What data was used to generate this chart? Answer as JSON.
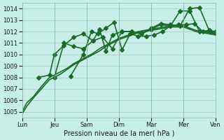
{
  "xlabel": "Pression niveau de la mer( hPa )",
  "ylabel": "",
  "background_color": "#c8eee8",
  "grid_color": "#a0c8c0",
  "line_color": "#1a6b2a",
  "ylim": [
    1004.5,
    1014.5
  ],
  "x_ticks": [
    0,
    1,
    2,
    3,
    4,
    5,
    6
  ],
  "x_tick_labels": [
    "Lun",
    "Jeu",
    "Sam",
    "Dim",
    "Mar",
    "Mer",
    "Ven"
  ],
  "series": [
    {
      "x": [
        0.0,
        0.15,
        0.35,
        0.6,
        0.85,
        1.0,
        1.2,
        1.4,
        1.6,
        1.8,
        2.0,
        2.2,
        2.4,
        2.6,
        2.8,
        3.0,
        3.2,
        3.4,
        3.6,
        3.8,
        4.0,
        4.2,
        4.4,
        4.6,
        4.8,
        5.0,
        5.2,
        5.4,
        5.6,
        5.8,
        6.0
      ],
      "y": [
        1005.0,
        1005.8,
        1006.3,
        1007.2,
        1008.0,
        1008.2,
        1008.5,
        1008.8,
        1009.2,
        1009.5,
        1009.8,
        1010.1,
        1010.5,
        1010.8,
        1011.1,
        1011.4,
        1011.6,
        1011.8,
        1012.0,
        1012.1,
        1012.2,
        1012.3,
        1012.4,
        1012.5,
        1012.5,
        1012.5,
        1012.3,
        1012.1,
        1012.0,
        1011.9,
        1011.8
      ],
      "marker": false,
      "linewidth": 1.2,
      "linestyle": "-"
    },
    {
      "x": [
        0.0,
        0.15,
        0.35,
        0.6,
        0.85,
        1.0,
        1.2,
        1.4,
        1.6,
        1.8,
        2.0,
        2.2,
        2.4,
        2.6,
        2.8,
        3.0,
        3.2,
        3.4,
        3.6,
        3.8,
        4.0,
        4.2,
        4.4,
        4.6,
        4.8,
        5.0,
        5.2,
        5.4,
        5.6,
        5.8,
        6.0
      ],
      "y": [
        1004.8,
        1005.5,
        1006.2,
        1007.0,
        1007.8,
        1008.0,
        1008.3,
        1008.7,
        1009.1,
        1009.4,
        1009.7,
        1010.0,
        1010.3,
        1010.7,
        1011.0,
        1011.3,
        1011.5,
        1011.7,
        1011.9,
        1012.0,
        1012.1,
        1012.2,
        1012.3,
        1012.4,
        1012.4,
        1012.4,
        1012.2,
        1012.0,
        1011.9,
        1011.8,
        1011.7
      ],
      "marker": false,
      "linewidth": 1.2,
      "linestyle": "-"
    },
    {
      "x": [
        0.5,
        0.85,
        1.0,
        1.3,
        1.6,
        1.9,
        2.2,
        2.5,
        2.8,
        3.1,
        3.4,
        3.7,
        4.0,
        4.3,
        4.6,
        4.9,
        5.2,
        5.5,
        5.8,
        6.0
      ],
      "y": [
        1008.0,
        1008.2,
        1010.0,
        1010.8,
        1011.5,
        1011.8,
        1011.2,
        1011.5,
        1010.5,
        1012.0,
        1012.0,
        1011.8,
        1012.2,
        1012.6,
        1012.5,
        1013.8,
        1013.8,
        1012.0,
        1012.1,
        1011.9
      ],
      "marker": true,
      "linewidth": 1.2,
      "linestyle": "-"
    },
    {
      "x": [
        1.0,
        1.3,
        1.6,
        1.9,
        2.2,
        2.4,
        2.6,
        2.8,
        3.1,
        3.4,
        3.7,
        4.0,
        4.3,
        4.6,
        4.9,
        5.2,
        5.5,
        5.8,
        6.0
      ],
      "y": [
        1008.0,
        1011.0,
        1010.7,
        1010.5,
        1011.2,
        1012.2,
        1010.3,
        1011.7,
        1012.0,
        1012.0,
        1011.8,
        1012.3,
        1012.7,
        1012.6,
        1012.5,
        1014.0,
        1014.1,
        1012.1,
        1012.0
      ],
      "marker": true,
      "linewidth": 1.2,
      "linestyle": "-"
    },
    {
      "x": [
        1.5,
        1.9,
        2.15,
        2.35,
        2.6,
        2.85,
        3.1,
        3.35,
        3.6,
        3.85,
        4.1,
        4.35,
        4.6,
        4.85,
        5.1,
        5.35,
        5.6,
        5.85,
        6.0
      ],
      "y": [
        1008.1,
        1010.0,
        1012.0,
        1011.8,
        1012.3,
        1012.8,
        1010.4,
        1011.8,
        1011.6,
        1011.6,
        1011.7,
        1012.0,
        1012.5,
        1012.6,
        1012.6,
        1012.7,
        1012.0,
        1012.0,
        1011.9
      ],
      "marker": true,
      "linewidth": 1.2,
      "linestyle": "-"
    }
  ]
}
